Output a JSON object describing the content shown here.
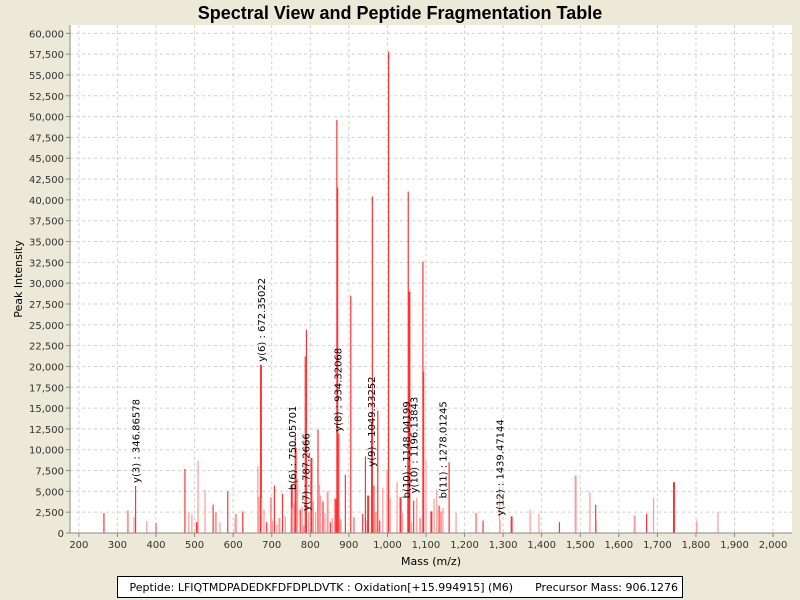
{
  "chart_data": {
    "type": "bar",
    "title": "Spectral View and Peptide Fragmentation Table",
    "xlabel": "Mass (m/z)",
    "ylabel": "Peak Intensity",
    "xlim": [
      177,
      2049
    ],
    "ylim": [
      0,
      61000
    ],
    "xticks": [
      200,
      300,
      400,
      500,
      600,
      700,
      800,
      900,
      1000,
      1100,
      1200,
      1300,
      1400,
      1500,
      1600,
      1700,
      1800,
      1900,
      2000
    ],
    "yticks": [
      0,
      2500,
      5000,
      7500,
      10000,
      12500,
      15000,
      17500,
      20000,
      22500,
      25000,
      27500,
      30000,
      32500,
      35000,
      37500,
      40000,
      42500,
      45000,
      47500,
      50000,
      52500,
      55000,
      57500,
      60000
    ],
    "grid": true,
    "peaks": [
      [
        265,
        2400
      ],
      [
        327,
        2700
      ],
      [
        343,
        1900
      ],
      [
        347,
        5650
      ],
      [
        376,
        1450
      ],
      [
        400,
        1200
      ],
      [
        475,
        7700
      ],
      [
        485,
        2500
      ],
      [
        493,
        2200
      ],
      [
        506,
        1300
      ],
      [
        509,
        8650
      ],
      [
        527,
        5200
      ],
      [
        548,
        3400
      ],
      [
        555,
        2500
      ],
      [
        566,
        1300
      ],
      [
        586,
        5000
      ],
      [
        605,
        1700
      ],
      [
        607,
        2300
      ],
      [
        625,
        2600
      ],
      [
        664,
        8000
      ],
      [
        667,
        4300
      ],
      [
        672,
        20200
      ],
      [
        674,
        4200
      ],
      [
        680,
        2800
      ],
      [
        687,
        1300
      ],
      [
        698,
        4300
      ],
      [
        702,
        1500
      ],
      [
        707,
        5700
      ],
      [
        713,
        1000
      ],
      [
        720,
        1800
      ],
      [
        728,
        4700
      ],
      [
        735,
        2000
      ],
      [
        751,
        1800
      ],
      [
        752,
        5800
      ],
      [
        753,
        3000
      ],
      [
        758,
        3600
      ],
      [
        761,
        11700
      ],
      [
        762,
        10200
      ],
      [
        767,
        6500
      ],
      [
        774,
        2800
      ],
      [
        779,
        3200
      ],
      [
        783,
        900
      ],
      [
        787,
        21200
      ],
      [
        790,
        24400
      ],
      [
        796,
        2500
      ],
      [
        803,
        9000
      ],
      [
        808,
        3800
      ],
      [
        814,
        2500
      ],
      [
        820,
        12400
      ],
      [
        823,
        5800
      ],
      [
        827,
        4500
      ],
      [
        833,
        3800
      ],
      [
        838,
        2400
      ],
      [
        845,
        5000
      ],
      [
        852,
        1300
      ],
      [
        857,
        1800
      ],
      [
        863,
        4200
      ],
      [
        867,
        4100
      ],
      [
        869,
        49600
      ],
      [
        871,
        41500
      ],
      [
        874,
        11900
      ],
      [
        878,
        1700
      ],
      [
        880,
        1500
      ],
      [
        891,
        7000
      ],
      [
        905,
        28500
      ],
      [
        913,
        1900
      ],
      [
        936,
        2300
      ],
      [
        943,
        9200
      ],
      [
        947,
        1500
      ],
      [
        950,
        4500
      ],
      [
        959,
        13200
      ],
      [
        961,
        40400
      ],
      [
        965,
        5700
      ],
      [
        970,
        2500
      ],
      [
        975,
        14700
      ],
      [
        980,
        1500
      ],
      [
        988,
        5400
      ],
      [
        1000,
        7600
      ],
      [
        1003,
        57800
      ],
      [
        1007,
        4200
      ],
      [
        1025,
        6100
      ],
      [
        1034,
        4300
      ],
      [
        1040,
        2400
      ],
      [
        1053,
        9600
      ],
      [
        1054,
        41000
      ],
      [
        1057,
        29000
      ],
      [
        1063,
        1300
      ],
      [
        1068,
        3900
      ],
      [
        1076,
        4200
      ],
      [
        1085,
        1800
      ],
      [
        1092,
        32600
      ],
      [
        1094,
        19400
      ],
      [
        1100,
        8700
      ],
      [
        1114,
        2600
      ],
      [
        1121,
        4100
      ],
      [
        1128,
        5200
      ],
      [
        1134,
        3300
      ],
      [
        1139,
        2600
      ],
      [
        1144,
        3000
      ],
      [
        1160,
        8500
      ],
      [
        1178,
        2400
      ],
      [
        1230,
        2400
      ],
      [
        1248,
        1500
      ],
      [
        1291,
        5500
      ],
      [
        1292,
        1500
      ],
      [
        1322,
        2000
      ],
      [
        1370,
        2800
      ],
      [
        1393,
        2300
      ],
      [
        1446,
        1300
      ],
      [
        1488,
        6900
      ],
      [
        1525,
        4900
      ],
      [
        1540,
        3400
      ],
      [
        1542,
        1400
      ],
      [
        1641,
        2100
      ],
      [
        1672,
        2300
      ],
      [
        1690,
        4200
      ],
      [
        1742,
        5100
      ],
      [
        1743,
        6100
      ],
      [
        1802,
        1500
      ],
      [
        1857,
        2500
      ]
    ],
    "annotations": [
      {
        "label": "y(3) : 346.86578",
        "mass": 347,
        "intensity": 5650
      },
      {
        "label": "y(6) : 672.35022",
        "mass": 672,
        "intensity": 20200
      },
      {
        "label": "b(6) : 750.05701",
        "mass": 752,
        "intensity": 4800
      },
      {
        "label": "y(7) : 787.2666",
        "mass": 787,
        "intensity": 2300
      },
      {
        "label": "y(8) : 934.32068",
        "mass": 871,
        "intensity": 11800
      },
      {
        "label": "y(9) : 1049.33252",
        "mass": 957,
        "intensity": 7600
      },
      {
        "label": "b(10) : 1148.04199",
        "mass": 1048,
        "intensity": 3800
      },
      {
        "label": "y(10) : 1196.13843",
        "mass": 1068,
        "intensity": 4400
      },
      {
        "label": "b(11) : 1278.01245",
        "mass": 1143,
        "intensity": 3800
      },
      {
        "label": "y(12) : 1439.47144",
        "mass": 1290,
        "intensity": 1700
      }
    ],
    "colors": {
      "peak": "#ff3333",
      "peak_light": "#ff9999",
      "grid": "#d0d0d0"
    }
  },
  "legend": {
    "peptide": "Peptide: LFIQTMDPADEDKFDFDPLDVTK : Oxidation[+15.994915] (M6)",
    "precursor": "Precursor Mass: 906.1276"
  }
}
